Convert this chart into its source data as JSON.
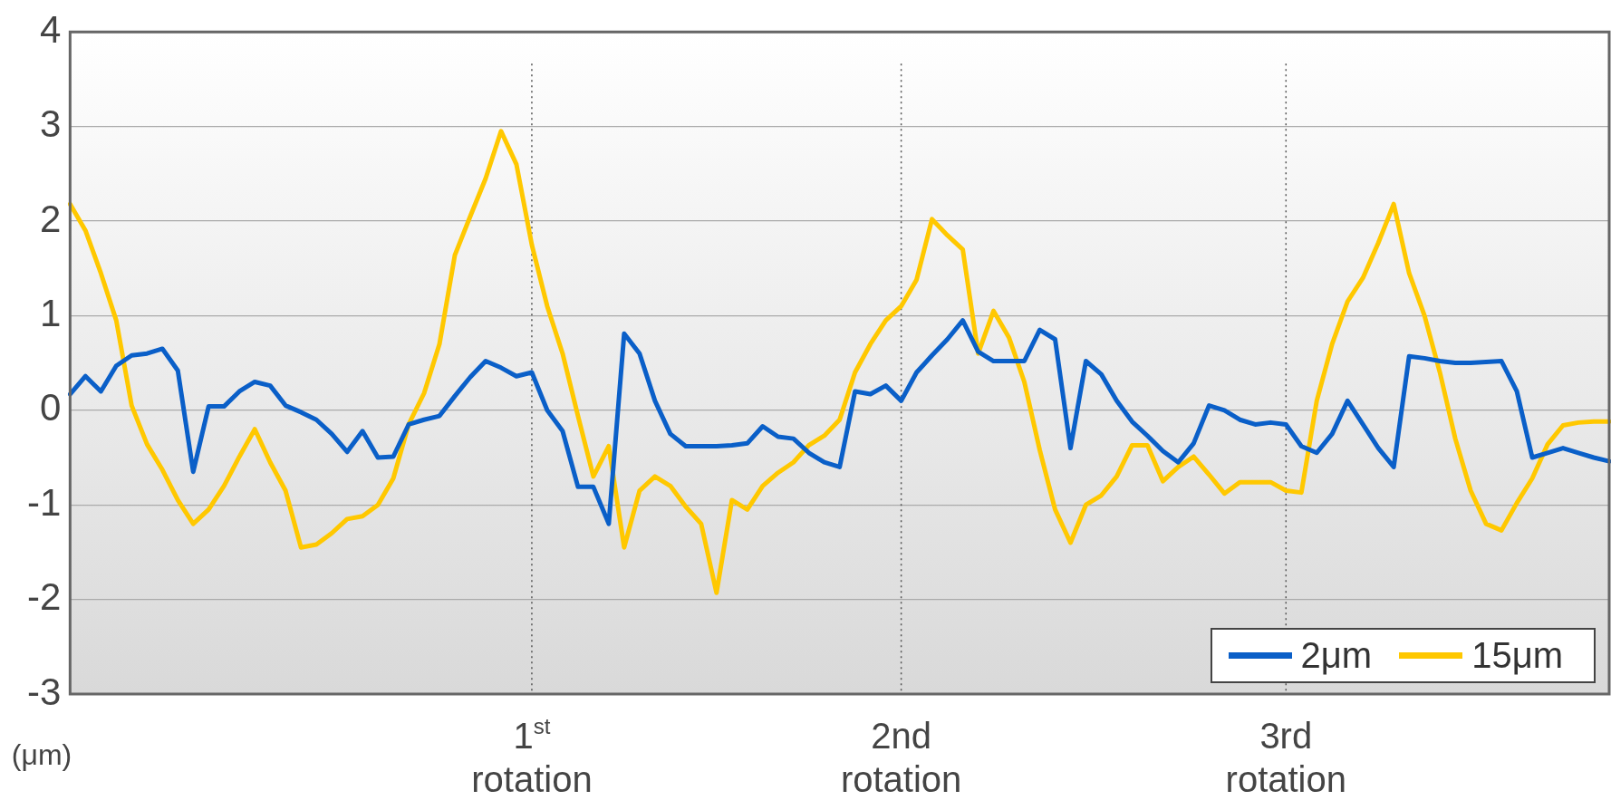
{
  "chart_data": {
    "type": "line",
    "ylabel": "(μm)",
    "ylim": [
      -3,
      4
    ],
    "yticks": [
      -3,
      -2,
      -1,
      0,
      1,
      2,
      3,
      4
    ],
    "grid": true,
    "legend": "bottom right",
    "marker": "none",
    "line_style": "solid",
    "categories": [
      null,
      null,
      null,
      null,
      null,
      null,
      null,
      null,
      null,
      null,
      null,
      null,
      null,
      null,
      null,
      null,
      null,
      null,
      null,
      null,
      null,
      null,
      null,
      null,
      null,
      null,
      null,
      null,
      null,
      null,
      "1$^{st}$ rotation",
      null,
      null,
      null,
      null,
      null,
      null,
      null,
      null,
      null,
      null,
      null,
      null,
      null,
      null,
      null,
      null,
      null,
      null,
      null,
      null,
      null,
      null,
      null,
      "2nd rotation",
      null,
      null,
      null,
      null,
      null,
      null,
      null,
      null,
      null,
      null,
      null,
      null,
      null,
      null,
      null,
      null,
      null,
      null,
      null,
      null,
      null,
      null,
      null,
      null,
      "3rd rotation",
      null,
      null,
      null,
      null,
      null,
      null,
      null,
      null,
      null,
      null,
      null,
      null,
      null,
      null,
      null,
      null,
      null,
      null,
      null,
      null,
      null
    ],
    "series": [
      {
        "name": "2μm",
        "color": "#0a5fc8",
        "values": [
          0.17,
          0.36,
          0.2,
          0.47,
          0.58,
          0.6,
          0.65,
          0.42,
          -0.65,
          0.04,
          0.04,
          0.2,
          0.3,
          0.26,
          0.05,
          -0.02,
          -0.1,
          -0.25,
          -0.44,
          -0.22,
          -0.5,
          -0.49,
          -0.15,
          -0.1,
          -0.06,
          0.15,
          0.35,
          0.52,
          0.45,
          0.36,
          0.4,
          0,
          -0.22,
          -0.81,
          -0.81,
          -1.2,
          0.81,
          0.6,
          0.1,
          -0.25,
          -0.38,
          -0.38,
          -0.38,
          -0.37,
          -0.35,
          -0.17,
          -0.28,
          -0.3,
          -0.45,
          -0.55,
          -0.6,
          0.2,
          0.17,
          0.26,
          0.1,
          0.4,
          0.58,
          0.75,
          0.95,
          0.62,
          0.52,
          0.52,
          0.52,
          0.85,
          0.75,
          -0.4,
          0.52,
          0.38,
          0.1,
          -0.12,
          -0.27,
          -0.43,
          -0.55,
          -0.35,
          0.05,
          0,
          -0.1,
          -0.15,
          -0.13,
          -0.15,
          -0.38,
          -0.45,
          -0.25,
          0.1,
          -0.15,
          -0.4,
          -0.6,
          0.57,
          0.55,
          0.52,
          0.5,
          0.5,
          0.51,
          0.52,
          0.2,
          -0.5,
          -0.45,
          -0.4,
          -0.45,
          -0.5,
          -0.54
        ]
      },
      {
        "name": "15μm",
        "color": "#ffc800",
        "values": [
          2.18,
          1.9,
          1.45,
          0.95,
          0.05,
          -0.36,
          -0.63,
          -0.95,
          -1.2,
          -1.05,
          -0.8,
          -0.49,
          -0.2,
          -0.55,
          -0.85,
          -1.45,
          -1.42,
          -1.3,
          -1.15,
          -1.12,
          -1.0,
          -0.72,
          -0.15,
          0.18,
          0.7,
          1.64,
          2.05,
          2.45,
          2.95,
          2.6,
          1.75,
          1.1,
          0.6,
          -0.06,
          -0.7,
          -0.38,
          -1.45,
          -0.85,
          -0.7,
          -0.8,
          -1.02,
          -1.2,
          -1.93,
          -0.95,
          -1.05,
          -0.8,
          -0.66,
          -0.55,
          -0.37,
          -0.27,
          -0.1,
          0.4,
          0.7,
          0.95,
          1.1,
          1.38,
          2.02,
          1.85,
          1.7,
          0.6,
          1.05,
          0.77,
          0.3,
          -0.42,
          -1.05,
          -1.4,
          -1.0,
          -0.9,
          -0.7,
          -0.37,
          -0.37,
          -0.75,
          -0.6,
          -0.49,
          -0.68,
          -0.88,
          -0.76,
          -0.76,
          -0.76,
          -0.85,
          -0.87,
          0.1,
          0.7,
          1.15,
          1.4,
          1.77,
          2.18,
          1.45,
          1.0,
          0.4,
          -0.3,
          -0.85,
          -1.2,
          -1.27,
          -0.98,
          -0.72,
          -0.36,
          -0.16,
          -0.13,
          -0.12,
          -0.12
        ]
      }
    ]
  }
}
